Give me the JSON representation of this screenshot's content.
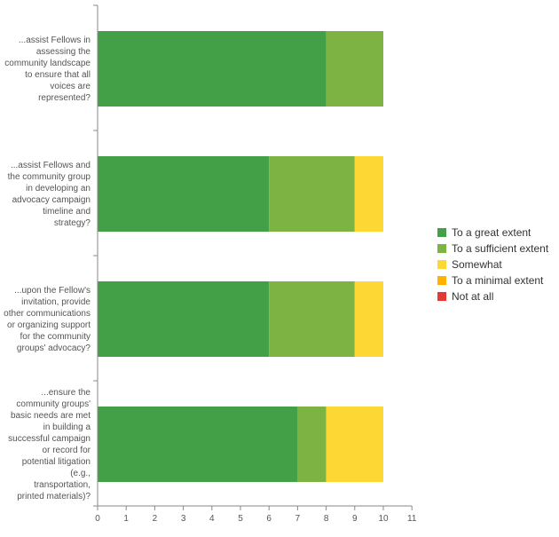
{
  "chart_data": {
    "type": "bar",
    "orientation": "horizontal",
    "stacked": true,
    "categories": [
      "...assist Fellows in\nassessing the\ncommunity landscape\nto ensure that all\nvoices are\nrepresented?",
      "...assist Fellows and\nthe community group\nin developing an\nadvocacy campaign\ntimeline and\nstrategy?",
      "...upon the Fellow's\ninvitation, provide\nother communications\nor organizing support\nfor the community\ngroups' advocacy?",
      "...ensure the\ncommunity groups'\nbasic needs are met\nin building a\nsuccessful campaign\nor record for\npotential litigation\n(e.g.,\ntransportation,\nprinted materials)?"
    ],
    "series": [
      {
        "name": "To a great extent",
        "color": "#43a047",
        "values": [
          8,
          6,
          6,
          7
        ]
      },
      {
        "name": "To a sufficient extent",
        "color": "#7cb342",
        "values": [
          2,
          3,
          3,
          1
        ]
      },
      {
        "name": "Somewhat",
        "color": "#fdd835",
        "values": [
          0,
          1,
          1,
          2
        ]
      },
      {
        "name": "To a minimal extent",
        "color": "#ffb300",
        "values": [
          0,
          0,
          0,
          0
        ]
      },
      {
        "name": "Not at all",
        "color": "#e53935",
        "values": [
          0,
          0,
          0,
          0
        ]
      }
    ],
    "xlim": [
      0,
      11
    ],
    "xticks": [
      "0",
      "1",
      "2",
      "3",
      "4",
      "5",
      "6",
      "7",
      "8",
      "9",
      "10",
      "11"
    ],
    "legend_position": "right",
    "grid": false
  }
}
